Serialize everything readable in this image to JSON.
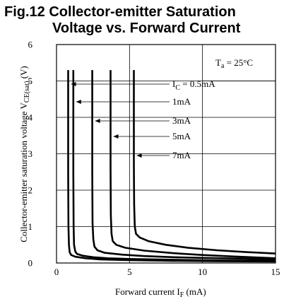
{
  "title_line1": "Fig.12 Collector-emitter Saturation",
  "title_line2": "Voltage vs. Forward Current",
  "chart_data": {
    "type": "line",
    "xlabel": "Forward current I",
    "xlabel_sub": "F",
    "xlabel_unit": "(mA)",
    "ylabel": "Collector-emitter saturation voltage V",
    "ylabel_sub": "CE(sat)",
    "ylabel_unit": "(V)",
    "xlim": [
      0,
      15
    ],
    "ylim": [
      0,
      6
    ],
    "xticks": [
      0,
      5,
      10,
      15
    ],
    "yticks": [
      0,
      1,
      2,
      3,
      4,
      5,
      6
    ],
    "grid": true,
    "condition": {
      "symbol": "T",
      "sub": "a",
      "text": " = 25°C"
    },
    "line_color": "#000000",
    "series": [
      {
        "name": "I_C = 0.5mA",
        "label_main": "I",
        "label_sub": "C",
        "label_rest": " = 0.5mA",
        "x": [
          0.8,
          0.8,
          0.82,
          0.85,
          0.9,
          1.0,
          1.3,
          2.0,
          3.0,
          5.0,
          8.0,
          11.0,
          15.0
        ],
        "y": [
          5.3,
          2.5,
          1.0,
          0.5,
          0.3,
          0.22,
          0.17,
          0.13,
          0.1,
          0.08,
          0.06,
          0.05,
          0.04
        ]
      },
      {
        "name": "1mA",
        "label_main": "1mA",
        "x": [
          1.15,
          1.15,
          1.17,
          1.2,
          1.28,
          1.4,
          1.8,
          2.5,
          3.5,
          5.0,
          8.0,
          11.0,
          15.0
        ],
        "y": [
          5.3,
          2.5,
          1.0,
          0.5,
          0.32,
          0.25,
          0.2,
          0.16,
          0.13,
          0.11,
          0.09,
          0.07,
          0.06
        ]
      },
      {
        "name": "3mA",
        "label_main": "3mA",
        "x": [
          2.45,
          2.45,
          2.47,
          2.52,
          2.6,
          2.8,
          3.3,
          4.5,
          6.0,
          8.0,
          10.0,
          12.5,
          15.0
        ],
        "y": [
          5.3,
          2.5,
          1.1,
          0.65,
          0.45,
          0.35,
          0.28,
          0.23,
          0.19,
          0.16,
          0.14,
          0.12,
          0.1
        ]
      },
      {
        "name": "5mA",
        "label_main": "5mA",
        "x": [
          3.7,
          3.7,
          3.72,
          3.77,
          3.85,
          4.1,
          4.7,
          6.0,
          8.0,
          10.0,
          12.0,
          15.0
        ],
        "y": [
          5.3,
          2.6,
          1.3,
          0.8,
          0.6,
          0.5,
          0.42,
          0.34,
          0.27,
          0.22,
          0.18,
          0.13
        ]
      },
      {
        "name": "7mA",
        "label_main": "7mA",
        "x": [
          5.3,
          5.3,
          5.32,
          5.36,
          5.45,
          5.7,
          6.3,
          7.5,
          9.0,
          11.0,
          13.0,
          15.0
        ],
        "y": [
          5.3,
          2.7,
          1.6,
          1.0,
          0.8,
          0.7,
          0.6,
          0.5,
          0.42,
          0.35,
          0.3,
          0.26
        ]
      }
    ]
  }
}
